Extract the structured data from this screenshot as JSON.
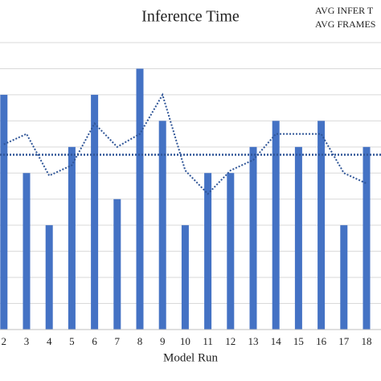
{
  "chart_data": {
    "type": "bar",
    "title": "Inference Time",
    "legend": [
      "AVG INFER T",
      "AVG FRAMES"
    ],
    "x_label": "Model Run",
    "categories": [
      "2",
      "3",
      "4",
      "5",
      "6",
      "7",
      "8",
      "9",
      "10",
      "11",
      "12",
      "13",
      "14",
      "15",
      "16",
      "17",
      "18"
    ],
    "values": [
      9,
      6,
      4,
      7,
      9,
      5,
      10,
      8,
      4,
      6,
      6,
      7,
      8,
      7,
      8,
      4,
      7
    ],
    "color": "#4472c4",
    "line_values": [
      7.1,
      7.5,
      5.9,
      6.3,
      7.9,
      7.0,
      7.5,
      9.0,
      6.1,
      5.2,
      6.1,
      6.5,
      7.5,
      7.5,
      7.5,
      6.0,
      5.6
    ],
    "average": 6.7,
    "line_color": "#2f5597",
    "ylim": [
      0,
      11
    ],
    "yticks": [
      0,
      1,
      2,
      3,
      4,
      5,
      6,
      7,
      8,
      9,
      10,
      11
    ],
    "grid": true
  }
}
